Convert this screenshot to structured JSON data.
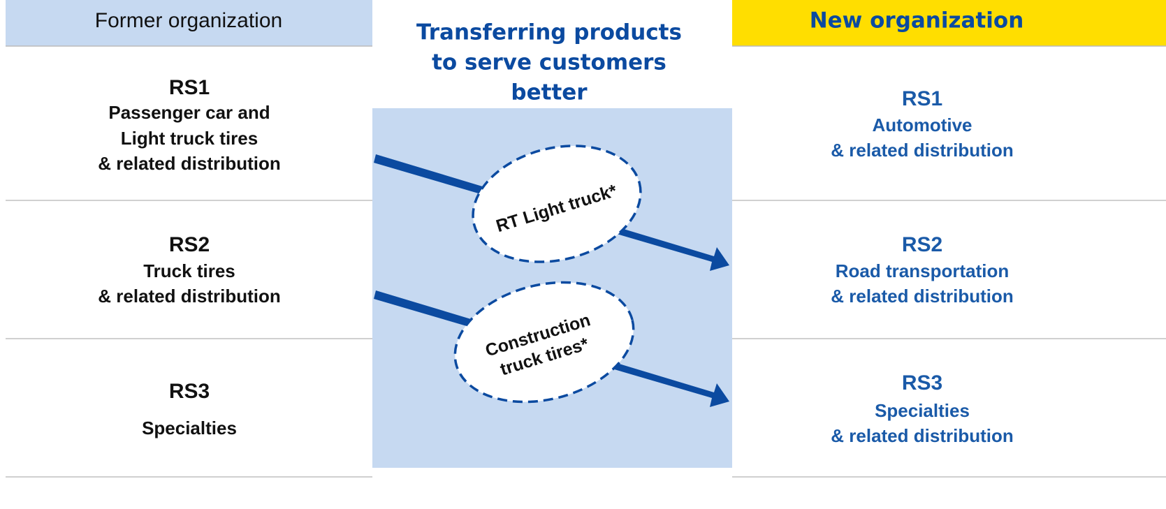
{
  "left": {
    "header": "Former organization",
    "rows": [
      {
        "code": "RS1",
        "lines": [
          "Passenger car and",
          "Light truck tires",
          "& related distribution"
        ]
      },
      {
        "code": "RS2",
        "lines": [
          "Truck tires",
          "& related distribution"
        ]
      },
      {
        "code": "RS3",
        "lines": [
          "Specialties"
        ]
      }
    ]
  },
  "center": {
    "title": [
      "Transferring products",
      "to serve customers",
      "better"
    ],
    "transfers": [
      {
        "lines": [
          "RT Light truck*"
        ]
      },
      {
        "lines": [
          "Construction",
          "truck tires*"
        ]
      }
    ]
  },
  "right": {
    "header": "New organization",
    "rows": [
      {
        "code": "RS1",
        "lines": [
          "Automotive",
          "& related distribution"
        ]
      },
      {
        "code": "RS2",
        "lines": [
          "Road transportation",
          "& related distribution"
        ]
      },
      {
        "code": "RS3",
        "lines": [
          "Specialties",
          "& related distribution"
        ]
      }
    ]
  }
}
